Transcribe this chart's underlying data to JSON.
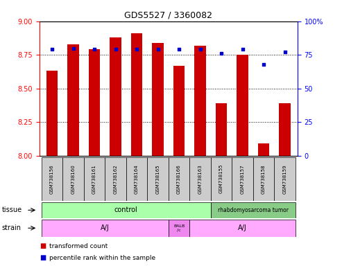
{
  "title": "GDS5527 / 3360082",
  "samples": [
    "GSM738156",
    "GSM738160",
    "GSM738161",
    "GSM738162",
    "GSM738164",
    "GSM738165",
    "GSM738166",
    "GSM738163",
    "GSM738155",
    "GSM738157",
    "GSM738158",
    "GSM738159"
  ],
  "bar_values": [
    8.63,
    8.83,
    8.79,
    8.88,
    8.91,
    8.84,
    8.67,
    8.82,
    8.39,
    8.75,
    8.09,
    8.39
  ],
  "dot_values": [
    79,
    80,
    79,
    79,
    79,
    79,
    79,
    79,
    76,
    79,
    68,
    77
  ],
  "bar_color": "#cc0000",
  "dot_color": "#0000cc",
  "ylim_left": [
    8.0,
    9.0
  ],
  "ylim_right": [
    0,
    100
  ],
  "yticks_left": [
    8.0,
    8.25,
    8.5,
    8.75,
    9.0
  ],
  "yticks_right": [
    0,
    25,
    50,
    75,
    100
  ],
  "bar_bottom": 8.0,
  "tissue_control_color": "#aaffaa",
  "tissue_tumor_color": "#88cc88",
  "strain_aj_color": "#ffaaff",
  "strain_balb_color": "#ee88ee",
  "sample_box_color": "#cccccc"
}
